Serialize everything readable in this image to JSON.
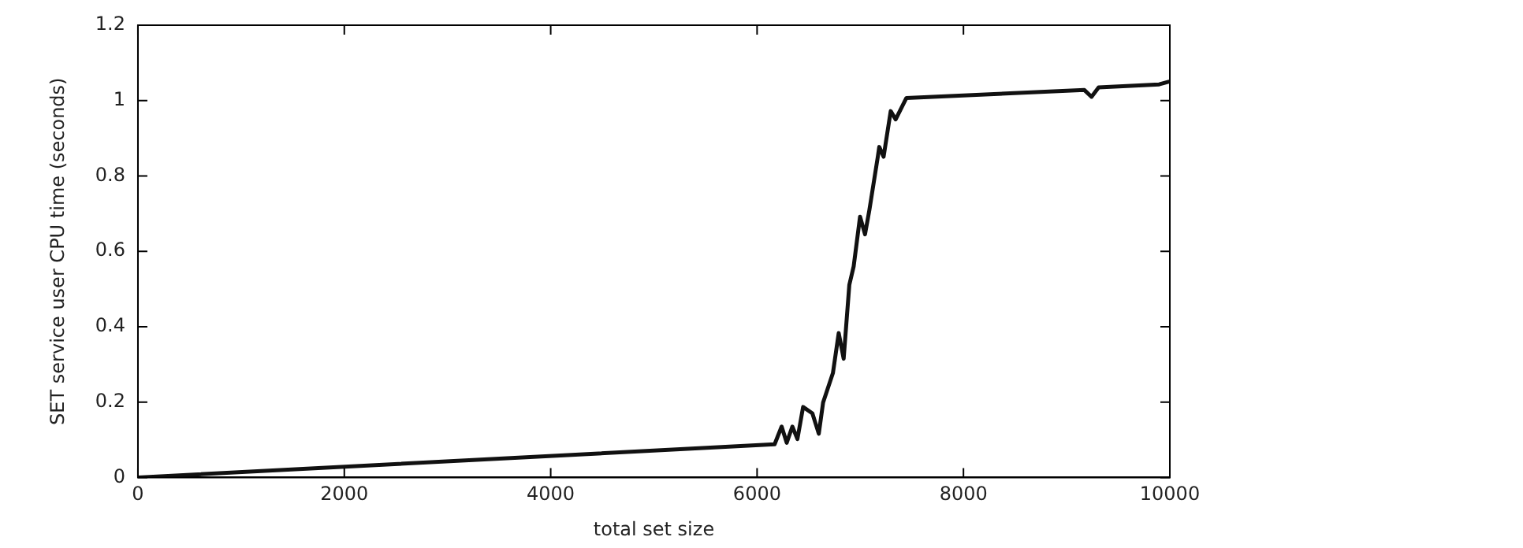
{
  "chart_data": {
    "type": "line",
    "xlabel": "total set size",
    "ylabel": "SET service user CPU time (seconds)",
    "xlim": [
      0,
      10000
    ],
    "xticks": [
      0,
      2000,
      4000,
      6000,
      8000,
      10000
    ],
    "ylim": [
      0,
      1.2
    ],
    "yticks": [
      0,
      0.2,
      0.4,
      0.6,
      0.8,
      1,
      1.2
    ],
    "grid": false,
    "legend": false,
    "marker": "none",
    "line_style": "solid",
    "series": [
      {
        "color": "#111111",
        "x": [
          0,
          6170,
          6238,
          6287,
          6342,
          6391,
          6446,
          6536,
          6598,
          6640,
          6735,
          6791,
          6839,
          6894,
          6936,
          6998,
          7046,
          7088,
          7170,
          7184,
          7226,
          7295,
          7343,
          7447,
          9172,
          9241,
          9310,
          9896,
          9986
        ],
        "values": [
          0,
          0.088,
          0.135,
          0.092,
          0.135,
          0.102,
          0.187,
          0.17,
          0.116,
          0.199,
          0.277,
          0.383,
          0.315,
          0.511,
          0.56,
          0.692,
          0.645,
          0.709,
          0.851,
          0.877,
          0.851,
          0.972,
          0.95,
          1.007,
          1.028,
          1.01,
          1.035,
          1.043,
          1.05
        ]
      }
    ]
  }
}
